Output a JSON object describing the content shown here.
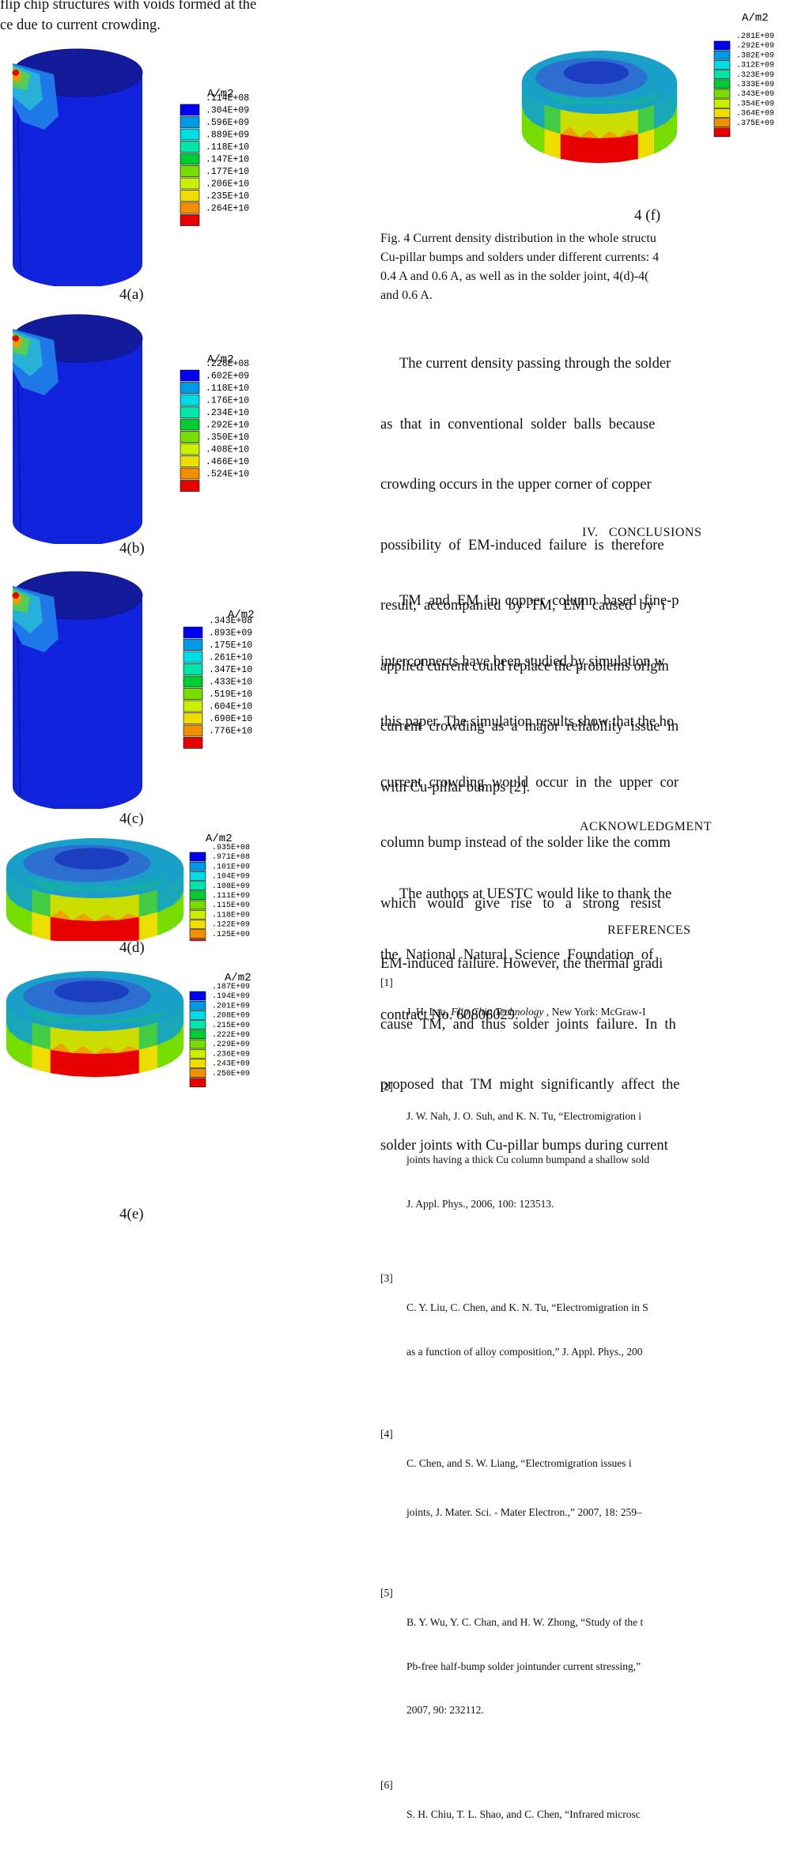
{
  "top_text": {
    "line1": "flip chip structures with voids formed at the",
    "line2": "ce due to current crowding."
  },
  "colors": [
    "#0000ee",
    "#0099e6",
    "#00dce6",
    "#00e6aa",
    "#00cc33",
    "#77dd00",
    "#ccee00",
    "#f0dd00",
    "#f09000",
    "#e60000"
  ],
  "figures": [
    {
      "id": "a",
      "label": "4(a)",
      "unit": "A/m2",
      "legend": [
        ".114E+08",
        ".304E+09",
        ".596E+09",
        ".889E+09",
        ".118E+10",
        ".147E+10",
        ".177E+10",
        ".206E+10",
        ".235E+10",
        ".264E+10"
      ]
    },
    {
      "id": "b",
      "label": "4(b)",
      "unit": "A/m2",
      "legend": [
        ".228E+08",
        ".602E+09",
        ".118E+10",
        ".176E+10",
        ".234E+10",
        ".292E+10",
        ".350E+10",
        ".408E+10",
        ".466E+10",
        ".524E+10"
      ]
    },
    {
      "id": "c",
      "label": "4(c)",
      "unit": "A/m2",
      "legend": [
        ".343E+08",
        ".893E+09",
        ".175E+10",
        ".261E+10",
        ".347E+10",
        ".433E+10",
        ".519E+10",
        ".604E+10",
        ".690E+10",
        ".776E+10"
      ]
    },
    {
      "id": "d",
      "label": "4(d)",
      "unit": "A/m2",
      "legend": [
        ".935E+08",
        ".971E+08",
        ".101E+09",
        ".104E+09",
        ".108E+09",
        ".111E+09",
        ".115E+09",
        ".118E+09",
        ".122E+09",
        ".125E+09"
      ]
    },
    {
      "id": "e",
      "label": "4(e)",
      "unit": "A/m2",
      "legend": [
        ".187E+09",
        ".194E+09",
        ".201E+09",
        ".208E+09",
        ".215E+09",
        ".222E+09",
        ".229E+09",
        ".236E+09",
        ".243E+09",
        ".250E+09"
      ]
    },
    {
      "id": "f",
      "label": "4 (f)",
      "unit": "A/m2",
      "legend": [
        ".281E+09",
        ".292E+09",
        ".302E+09",
        ".312E+09",
        ".323E+09",
        ".333E+09",
        ".343E+09",
        ".354E+09",
        ".364E+09",
        ".375E+09"
      ]
    }
  ],
  "fig_caption": [
    "Fig. 4 Current density distribution in the whole structu",
    "Cu-pillar bumps and solders under different currents: 4",
    "0.4 A and 0.6 A, as well as in the solder joint, 4(d)-4(",
    "and 0.6 A."
  ],
  "para1": [
    "The current density passing through the solder",
    "as  that  in  conventional  solder  balls  because",
    "crowding occurs in the upper corner of copper",
    "possibility  of  EM-induced  failure  is  therefore",
    "result,  accompanied  by  TM,  EM  caused  by  i",
    "applied current could replace the problems origin",
    "current  crowding  as  a  major  reliability  issue  in",
    "with Cu-pillar bumps [2]."
  ],
  "conclusions_heading": "IV.   CONCLUSIONS",
  "para2": [
    "TM  and  EM  in  copper  column  based  fine-p",
    "interconnects have been studied by simulation w",
    "this paper. The simulation results show that the ho",
    "current  crowding  would  occur  in  the  upper  cor",
    "column bump instead of the solder like the comm",
    "which   would   give   rise   to   a   strong   resist",
    "EM-induced failure. However, the thermal gradi",
    "cause  TM,  and  thus  solder  joints  failure.  In  th",
    "proposed  that  TM  might  significantly  affect  the",
    "solder joints with Cu-pillar bumps during current"
  ],
  "ack_heading": "ACKNOWLEDGMENT",
  "para3": [
    "The authors at UESTC would like to thank the",
    "the  National  Natural  Science  Foundation  of",
    "contract No. 60806029."
  ],
  "refs_heading": "REFERENCES",
  "refs": [
    {
      "num": "[1]",
      "lines": [
        "J. H. Lau, Flip Chip Technology , New York: McGraw-I"
      ]
    },
    {
      "num": "[2]",
      "lines": [
        "J. W. Nah, J. O. Suh, and K. N. Tu, “Electromigration i",
        "joints having a thick Cu column bumpand a shallow sold",
        "J. Appl. Phys., 2006, 100: 123513."
      ]
    },
    {
      "num": "[3]",
      "lines": [
        "C. Y. Liu, C. Chen, and K. N. Tu, “Electromigration in S",
        "as a function of alloy composition,” J. Appl. Phys., 200"
      ]
    },
    {
      "num": "[4]",
      "lines": [
        "C. Chen, and S. W. Liang, “Electromigration issues i",
        "joints, J. Mater. Sci. - Mater Electron.,” 2007, 18: 259–"
      ]
    },
    {
      "num": "[5]",
      "lines": [
        "B. Y. Wu, Y. C. Chan, and H. W. Zhong, “Study of the t",
        "Pb-free half-bump solder jointunder current stressing,” ",
        "2007, 90: 232112."
      ]
    },
    {
      "num": "[6]",
      "lines": [
        "S. H. Chiu, T. L. Shao, and C. Chen, “Infrared microsc"
      ]
    }
  ]
}
